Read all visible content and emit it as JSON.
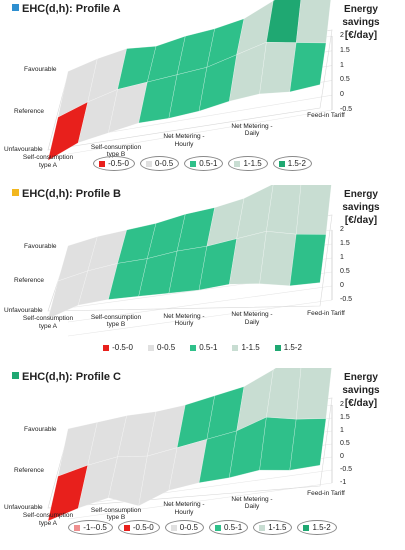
{
  "chart_data": [
    {
      "type": "surface3d",
      "title": "EHC(d,h): Profile A",
      "title_color": "#2e8fd0",
      "zlabel": "Energy savings [€/day]",
      "z_ticks": [
        "2",
        "1.5",
        "1",
        "0.5",
        "0",
        "-0.5"
      ],
      "zlim": [
        -0.5,
        2
      ],
      "y_categories": [
        "Favourable",
        "Reference",
        "Unfavourable"
      ],
      "x_categories": [
        "Self-consumption type A",
        "Self-consumption type B",
        "Net Metering - Hourly",
        "Net Metering - Daily",
        "Feed-in Tariff"
      ],
      "x_label_lines": [
        [
          "Self-consumption",
          "type A"
        ],
        [
          "Self-consumption",
          "type B"
        ],
        [
          "Net Metering -",
          "Hourly"
        ],
        [
          "Net Metering -",
          "Daily"
        ],
        [
          "Feed-in Tariff",
          ""
        ]
      ],
      "rows": [
        [
          0.1,
          0.4,
          0.6,
          0.5,
          0.7,
          0.8,
          1.0,
          1.5,
          2.0,
          1.6
        ],
        [
          -0.2,
          0.2,
          0.5,
          0.6,
          0.7,
          0.8,
          1.1,
          1.4,
          1.2,
          1.0
        ],
        [
          -0.4,
          0.1,
          0.3,
          0.5,
          0.5,
          0.6,
          0.8,
          0.9,
          0.8,
          0.9
        ]
      ],
      "legend": [
        {
          "label": "-0.5-0",
          "color": "#e8201c"
        },
        {
          "label": "0-0.5",
          "color": "#e0e0e0"
        },
        {
          "label": "0.5-1",
          "color": "#2fc08a"
        },
        {
          "label": "1-1.5",
          "color": "#c8ddd2"
        },
        {
          "label": "1.5-2",
          "color": "#1fa872"
        }
      ],
      "legend_boxed": true
    },
    {
      "type": "surface3d",
      "title": "EHC(d,h): Profile B",
      "title_color": "#f2b71f",
      "zlabel": "Energy savings [€/day]",
      "z_ticks": [
        "2",
        "1.5",
        "1",
        "0.5",
        "0",
        "-0.5"
      ],
      "zlim": [
        -0.5,
        2
      ],
      "y_categories": [
        "Favourable",
        "Reference",
        "Unfavourable"
      ],
      "x_categories": [
        "Self-consumption type A",
        "Self-consumption type B",
        "Net Metering - Hourly",
        "Net Metering - Daily",
        "Feed-in Tariff"
      ],
      "x_label_lines": [
        [
          "Self-consumption",
          "type A"
        ],
        [
          "Self-consumption",
          "type B"
        ],
        [
          "Net Metering -",
          "Hourly"
        ],
        [
          "Net Metering -",
          "Daily"
        ],
        [
          "Feed-in Tariff",
          ""
        ]
      ],
      "rows": [
        [
          0.2,
          0.4,
          0.5,
          0.6,
          0.8,
          0.9,
          1.1,
          1.5,
          2.0,
          1.4
        ],
        [
          0.0,
          0.3,
          0.5,
          0.6,
          0.8,
          0.9,
          1.1,
          1.3,
          1.1,
          1.0
        ],
        [
          -0.3,
          0.2,
          0.4,
          0.5,
          0.6,
          0.7,
          0.9,
          0.9,
          0.8,
          0.9
        ]
      ],
      "legend": [
        {
          "label": "-0.5-0",
          "color": "#e8201c"
        },
        {
          "label": "0-0.5",
          "color": "#e0e0e0"
        },
        {
          "label": "0.5-1",
          "color": "#2fc08a"
        },
        {
          "label": "1-1.5",
          "color": "#c8ddd2"
        },
        {
          "label": "1.5-2",
          "color": "#1fa872"
        }
      ],
      "legend_boxed": false
    },
    {
      "type": "surface3d",
      "title": "EHC(d,h): Profile C",
      "title_color": "#1fa872",
      "zlabel": "Energy savings [€/day]",
      "z_ticks": [
        "2",
        "1.5",
        "1",
        "0.5",
        "0",
        "-0.5",
        "-1"
      ],
      "zlim": [
        -1,
        2
      ],
      "y_categories": [
        "Favourable",
        "Reference",
        "Unfavourable"
      ],
      "x_categories": [
        "Self-consumption type A",
        "Self-consumption type B",
        "Net Metering - Hourly",
        "Net Metering - Daily",
        "Feed-in Tariff"
      ],
      "x_label_lines": [
        [
          "Self-consumption",
          "type A"
        ],
        [
          "Self-consumption",
          "type B"
        ],
        [
          "Net Metering -",
          "Hourly"
        ],
        [
          "Net Metering -",
          "Daily"
        ],
        [
          "Feed-in Tariff",
          ""
        ]
      ],
      "rows": [
        [
          0.2,
          0.3,
          0.4,
          0.4,
          0.5,
          0.7,
          0.9,
          1.4,
          2.0,
          1.3
        ],
        [
          -0.2,
          0.1,
          0.3,
          0.2,
          0.4,
          0.6,
          0.8,
          1.2,
          1.0,
          0.9
        ],
        [
          -0.5,
          -0.1,
          0.2,
          -0.2,
          0.3,
          0.5,
          0.6,
          0.8,
          0.7,
          0.8
        ]
      ],
      "legend": [
        {
          "label": "-1--0.5",
          "color": "#ef8f8f"
        },
        {
          "label": "-0.5-0",
          "color": "#e8201c"
        },
        {
          "label": "0-0.5",
          "color": "#e0e0e0"
        },
        {
          "label": "0.5-1",
          "color": "#2fc08a"
        },
        {
          "label": "1-1.5",
          "color": "#c8ddd2"
        },
        {
          "label": "1.5-2",
          "color": "#1fa872"
        }
      ],
      "legend_boxed": true
    }
  ]
}
